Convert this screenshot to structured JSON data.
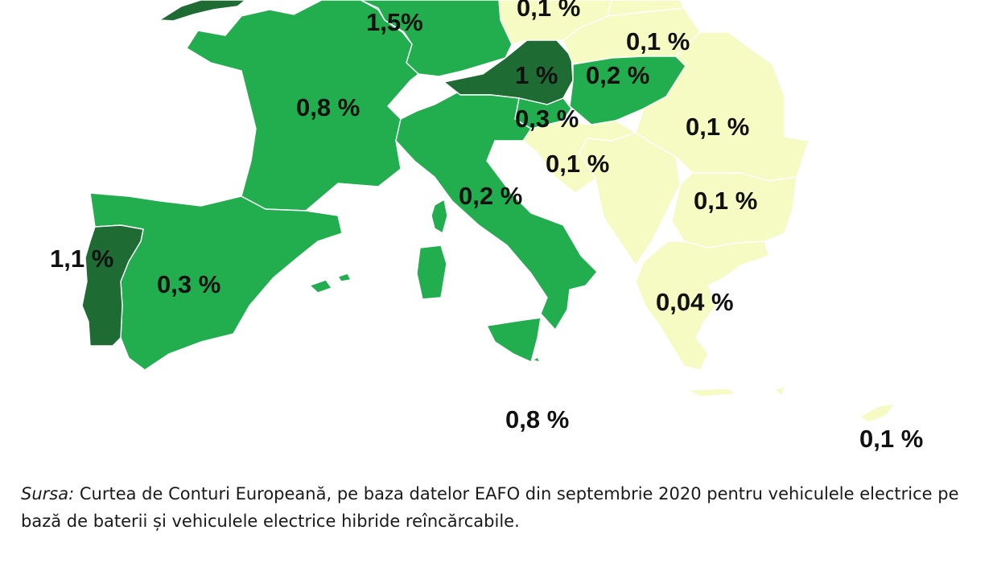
{
  "map": {
    "colors": {
      "dark": "#1e6b33",
      "medium": "#22ad4e",
      "light": "#f5fbc2",
      "background": "#ffffff",
      "border": "#ffffff"
    },
    "regions": [
      {
        "name": "France",
        "value": "0,8 %",
        "category": "medium"
      },
      {
        "name": "Spain",
        "value": "0,3 %",
        "category": "medium"
      },
      {
        "name": "Portugal",
        "value": "1,1 %",
        "category": "dark"
      },
      {
        "name": "Germany",
        "value": "1,5%",
        "category": "medium"
      },
      {
        "name": "Italy",
        "value": "0,2 %",
        "category": "medium"
      },
      {
        "name": "Austria",
        "value": "1 %",
        "category": "dark"
      },
      {
        "name": "Hungary",
        "value": "0,2 %",
        "category": "medium"
      },
      {
        "name": "Slovenia",
        "value": "0,3 %",
        "category": "medium"
      },
      {
        "name": "Croatia",
        "value": "0,1 %",
        "category": "light"
      },
      {
        "name": "Romania",
        "value": "0,1 %",
        "category": "light"
      },
      {
        "name": "Bulgaria",
        "value": "0,1 %",
        "category": "light"
      },
      {
        "name": "Greece",
        "value": "0,04 %",
        "category": "light"
      },
      {
        "name": "Malta",
        "value": "0,8 %",
        "category": "medium"
      },
      {
        "name": "Cyprus",
        "value": "0,1 %",
        "category": "light"
      },
      {
        "name": "Czechia",
        "value": "0,1 %",
        "category": "light"
      },
      {
        "name": "Slovakia",
        "value": "0,1 %",
        "category": "light"
      }
    ]
  },
  "caption": {
    "source_label": "Sursa:",
    "text": " Curtea de Conturi Europeană, pe baza datelor EAFO din septembrie 2020 pentru vehiculele electrice pe bază de baterii și vehiculele electrice hibride reîncărcabile."
  }
}
